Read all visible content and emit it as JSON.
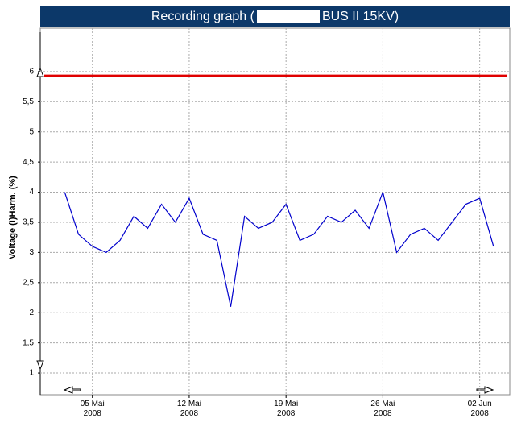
{
  "chart_data": {
    "type": "line",
    "title_left": "Recording graph (",
    "title_right": "BUS II 15KV)",
    "ylabel": "Voltage (I)Harm. (%)",
    "x": [
      "2008-05-03",
      "2008-05-04",
      "2008-05-05",
      "2008-05-06",
      "2008-05-07",
      "2008-05-08",
      "2008-05-09",
      "2008-05-10",
      "2008-05-11",
      "2008-05-12",
      "2008-05-13",
      "2008-05-14",
      "2008-05-15",
      "2008-05-16",
      "2008-05-17",
      "2008-05-18",
      "2008-05-19",
      "2008-05-20",
      "2008-05-21",
      "2008-05-22",
      "2008-05-23",
      "2008-05-24",
      "2008-05-25",
      "2008-05-26",
      "2008-05-27",
      "2008-05-28",
      "2008-05-29",
      "2008-05-30",
      "2008-05-31",
      "2008-06-01",
      "2008-06-02",
      "2008-06-03"
    ],
    "series": [
      {
        "color": "#0000cc",
        "values": [
          4.0,
          3.3,
          3.1,
          3.0,
          3.2,
          3.6,
          3.4,
          3.8,
          3.5,
          3.9,
          3.3,
          3.2,
          2.1,
          3.6,
          3.4,
          3.5,
          3.8,
          3.2,
          3.3,
          3.6,
          3.5,
          3.7,
          3.4,
          4.0,
          3.0,
          3.3,
          3.4,
          3.2,
          3.5,
          3.8,
          3.9,
          3.1
        ]
      }
    ],
    "threshold": {
      "value": 5.93,
      "color": "#e00000"
    },
    "xlim": [
      "2008-05-01",
      "2008-06-04"
    ],
    "xticks": [
      {
        "value": "2008-05-05",
        "label": "05 Mai 2008"
      },
      {
        "value": "2008-05-12",
        "label": "12 Mai 2008"
      },
      {
        "value": "2008-05-19",
        "label": "19 Mai 2008"
      },
      {
        "value": "2008-05-26",
        "label": "26 Mai 2008"
      },
      {
        "value": "2008-06-02",
        "label": "02 Jun 2008"
      }
    ],
    "ylim": [
      0.64,
      6.72
    ],
    "yticks": [
      1,
      {
        "value": 1.5,
        "label": "1,5"
      },
      2,
      {
        "value": 2.5,
        "label": "2,5"
      },
      3,
      {
        "value": 3.5,
        "label": "3,5"
      },
      4,
      {
        "value": 4.5,
        "label": "4,5"
      },
      5,
      {
        "value": 5.5,
        "label": "5,5"
      },
      6
    ],
    "grid": true
  }
}
